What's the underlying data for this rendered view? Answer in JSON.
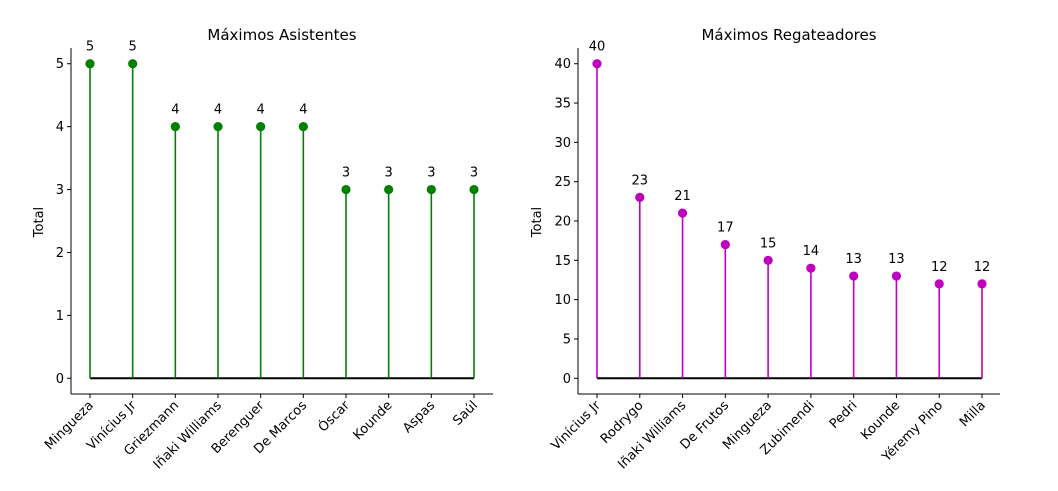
{
  "chart_data": [
    {
      "type": "stem",
      "title": "Máximos Asistentes",
      "xlabel": "",
      "ylabel": "Total",
      "color": "#008000",
      "baseline_color": "#000000",
      "categories": [
        "Mingueza",
        "Vinícius Jr",
        "Griezmann",
        "Iñaki Williams",
        "Berenguer",
        "De Marcos",
        "Óscar",
        "Kounde",
        "Aspas",
        "Saúl"
      ],
      "values": [
        5,
        5,
        4,
        4,
        4,
        4,
        3,
        3,
        3,
        3
      ],
      "yticks": [
        0,
        1,
        2,
        3,
        4,
        5
      ],
      "ylim": [
        -0.25,
        5.25
      ],
      "grid": false,
      "legend": false
    },
    {
      "type": "stem",
      "title": "Máximos Regateadores",
      "xlabel": "",
      "ylabel": "Total",
      "color": "#bf00bf",
      "baseline_color": "#000000",
      "categories": [
        "Vinícius Jr",
        "Rodrygo",
        "Iñaki Williams",
        "De Frutos",
        "Mingueza",
        "Zubimendi",
        "Pedri",
        "Kounde",
        "Yéremy Pino",
        "Milla"
      ],
      "values": [
        40,
        23,
        21,
        17,
        15,
        14,
        13,
        13,
        12,
        12
      ],
      "yticks": [
        0,
        5,
        10,
        15,
        20,
        25,
        30,
        35,
        40
      ],
      "ylim": [
        -2,
        42
      ],
      "grid": false,
      "legend": false
    }
  ]
}
